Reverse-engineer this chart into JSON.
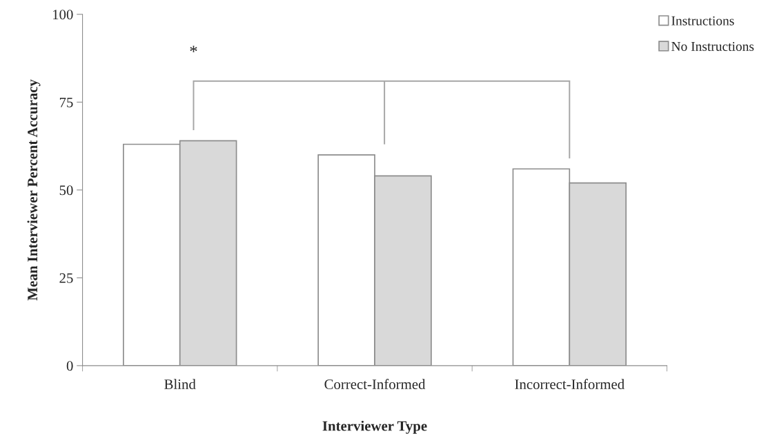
{
  "chart_data": {
    "type": "bar",
    "xlabel": "Interviewer Type",
    "ylabel": "Mean Interviewer Percent Accuracy",
    "categories": [
      "Blind",
      "Correct-Informed",
      "Incorrect-Informed"
    ],
    "series": [
      {
        "name": "Instructions",
        "color": "#ffffff",
        "values": [
          63,
          60,
          56
        ]
      },
      {
        "name": "No Instructions",
        "color": "#d9d9d9",
        "values": [
          64,
          54,
          52
        ]
      }
    ],
    "ylim": [
      0,
      100
    ],
    "yticks": [
      0,
      25,
      50,
      75,
      100
    ],
    "grid": false,
    "legend": "top right",
    "annotations": [
      "*"
    ]
  }
}
